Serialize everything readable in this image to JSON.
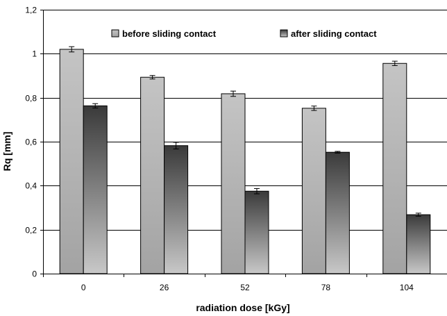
{
  "chart_data": {
    "type": "bar",
    "categories": [
      "0",
      "26",
      "52",
      "78",
      "104"
    ],
    "series": [
      {
        "name": "before sliding contact",
        "values": [
          1.02,
          0.893,
          0.818,
          0.752,
          0.956
        ],
        "errors": [
          0.012,
          0.008,
          0.012,
          0.01,
          0.01
        ]
      },
      {
        "name": "after sliding contact",
        "values": [
          0.763,
          0.582,
          0.375,
          0.552,
          0.268
        ],
        "errors": [
          0.01,
          0.015,
          0.012,
          0.004,
          0.007
        ]
      }
    ],
    "xlabel": "radiation dose [kGy]",
    "ylabel": "Rq [mm]",
    "ylim": [
      0,
      1.2
    ],
    "yticks": [
      0,
      0.2,
      0.4,
      0.6,
      0.8,
      1,
      1.2
    ],
    "ytick_labels": [
      "0",
      "0,2",
      "0,4",
      "0,6",
      "0,8",
      "1",
      "1,2"
    ],
    "grid": true,
    "legend_position": "top"
  }
}
